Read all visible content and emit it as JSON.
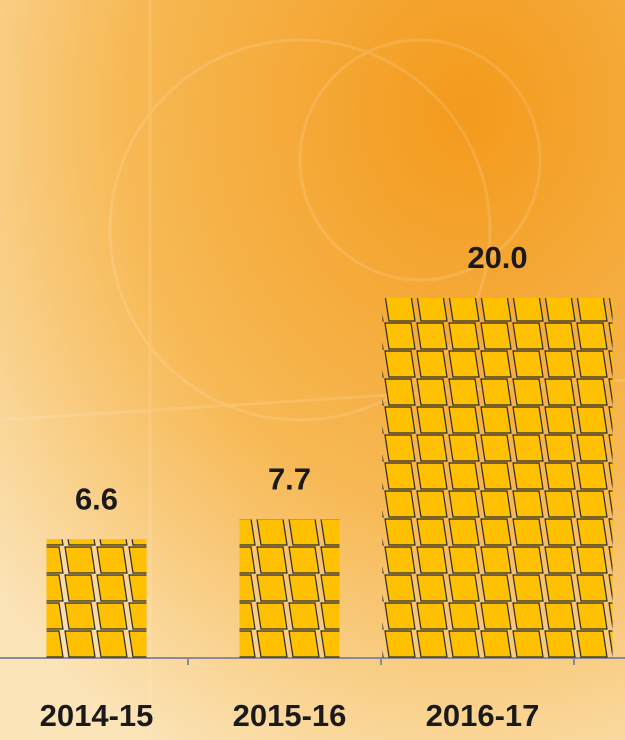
{
  "chart_data": {
    "type": "bar",
    "categories": [
      "2014-15",
      "2015-16",
      "2016-17"
    ],
    "values": [
      6.6,
      7.7,
      20.0
    ],
    "value_labels": [
      "6.6",
      "7.7",
      "20.0"
    ],
    "color": "#ffc000"
  }
}
